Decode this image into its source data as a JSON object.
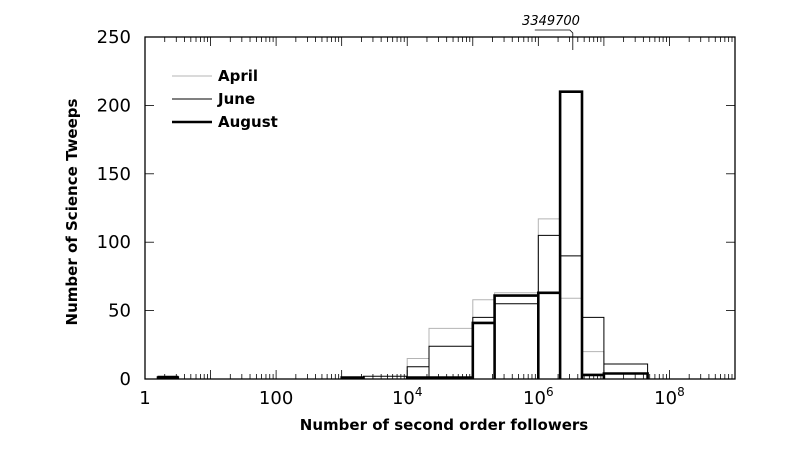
{
  "chart_data": {
    "type": "histogram",
    "xlabel": "Number of second order followers",
    "ylabel": "Number of Science Tweeps",
    "x_scale": "log10",
    "xlim": [
      1,
      1000000000
    ],
    "ylim": [
      0,
      250
    ],
    "x_ticks": [
      {
        "value": 1,
        "label": "1"
      },
      {
        "value": 100,
        "label": "100"
      },
      {
        "value": 10000,
        "label": "10",
        "exp": "4"
      },
      {
        "value": 1000000,
        "label": "10",
        "exp": "6"
      },
      {
        "value": 100000000,
        "label": "10",
        "exp": "8"
      }
    ],
    "y_ticks": [
      0,
      50,
      100,
      150,
      200,
      250
    ],
    "annotation": {
      "text": "3349700",
      "x": 3349700
    },
    "legend_position": "top-left",
    "bin_edges": [
      1.58,
      3.16,
      100,
      215,
      1000,
      2150,
      10000,
      21500,
      100000,
      215000,
      1000000,
      2150000,
      4640000,
      10000000,
      46400000,
      464000000
    ],
    "series": [
      {
        "name": "April",
        "color": "#b4b4b4",
        "width": 1,
        "values": [
          1,
          0,
          0,
          0,
          1,
          0,
          15,
          37,
          58,
          63,
          117,
          59,
          20,
          4,
          0
        ]
      },
      {
        "name": "June",
        "color": "#000000",
        "width": 1,
        "values": [
          2,
          0,
          0,
          0,
          1,
          2,
          9,
          24,
          45,
          55,
          105,
          90,
          45,
          11,
          0
        ]
      },
      {
        "name": "August",
        "color": "#000000",
        "width": 2.6,
        "values": [
          1,
          0,
          0,
          0,
          1,
          0,
          1,
          1,
          41,
          61,
          63,
          210,
          3,
          4,
          0
        ]
      }
    ]
  }
}
